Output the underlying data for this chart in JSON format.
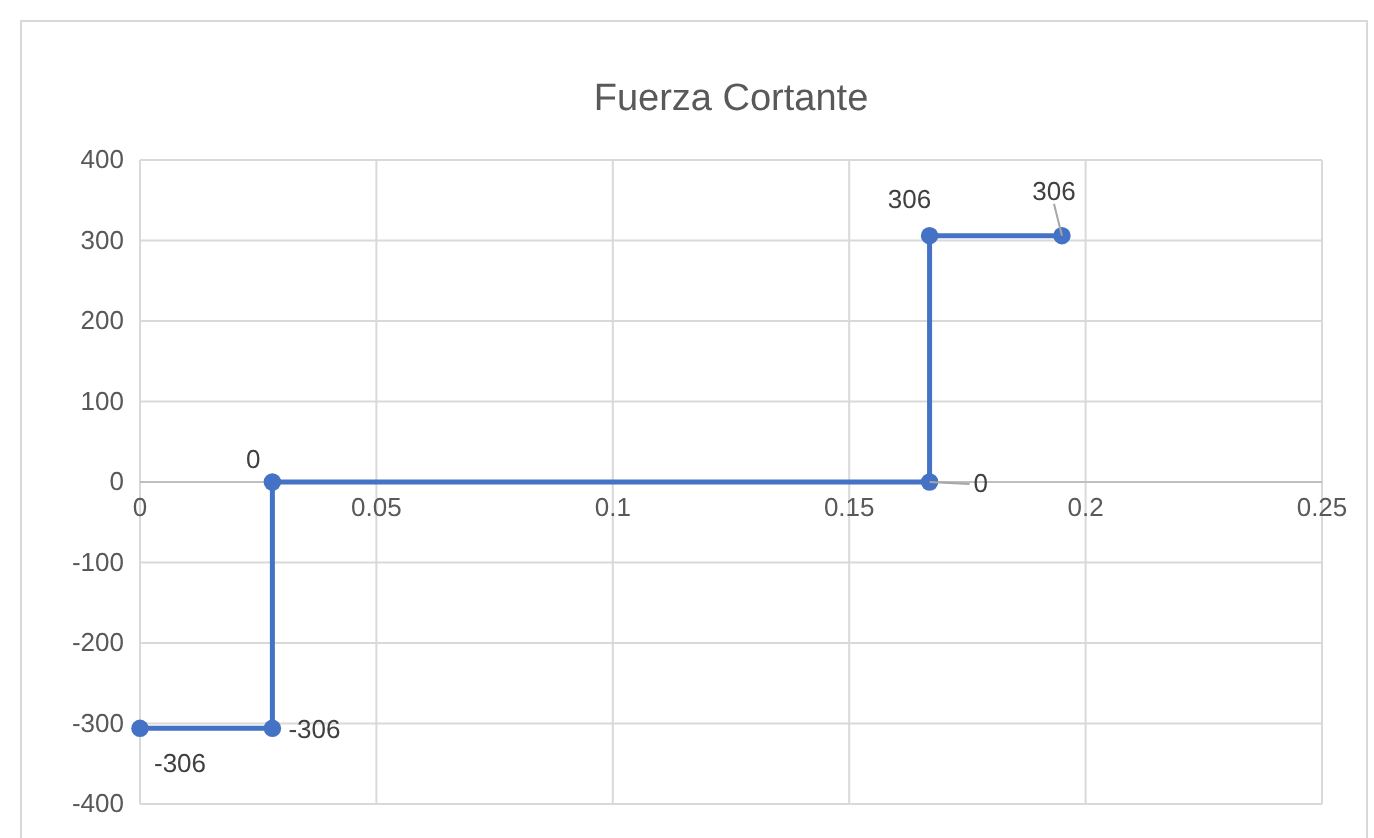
{
  "chart_data": {
    "type": "line",
    "title": "Fuerza Cortante",
    "x": [
      0,
      0.028,
      0.028,
      0.167,
      0.167,
      0.195
    ],
    "series": [
      {
        "color": "#4472c4",
        "values": [
          -306,
          -306,
          0,
          0,
          306,
          306
        ]
      }
    ],
    "xlim": [
      0,
      0.25
    ],
    "xticks": [
      0,
      0.05,
      0.1,
      0.15,
      0.2,
      0.25
    ],
    "ylim": [
      -400,
      400
    ],
    "yticks": [
      -400,
      -300,
      -200,
      -100,
      0,
      100,
      200,
      300,
      400
    ],
    "grid": true,
    "marker": "circle",
    "line_style": "solid",
    "data_labels": true
  }
}
